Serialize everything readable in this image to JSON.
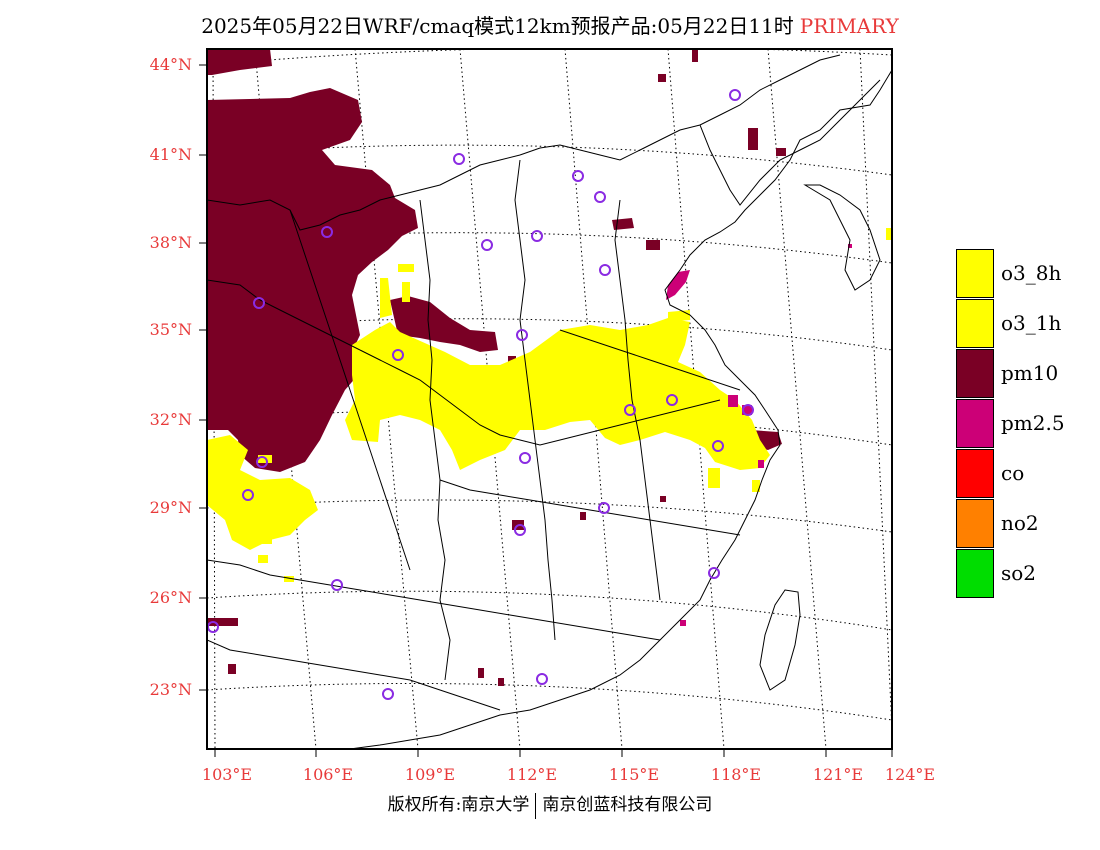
{
  "title": {
    "main": "2025年05月22日WRF/cmaq模式12km预报产品:05月22日11时",
    "tag": "PRIMARY"
  },
  "colors": {
    "accent_red": "#e83a3a",
    "pm10": "#7a0025",
    "ozone": "#ffff00",
    "station_marker": "#8a2be2"
  },
  "axes": {
    "lat_labels": [
      "44°N",
      "41°N",
      "38°N",
      "35°N",
      "32°N",
      "29°N",
      "26°N",
      "23°N"
    ],
    "lon_labels": [
      "103°E",
      "106°E",
      "109°E",
      "112°E",
      "115°E",
      "118°E",
      "121°E",
      "124°E"
    ]
  },
  "legend": [
    {
      "label": "o3_8h",
      "color": "#ffff00"
    },
    {
      "label": "o3_1h",
      "color": "#ffff00"
    },
    {
      "label": "pm10",
      "color": "#7a0025"
    },
    {
      "label": "pm2.5",
      "color": "#cc0077"
    },
    {
      "label": "co",
      "color": "#ff0000"
    },
    {
      "label": "no2",
      "color": "#ff8000"
    },
    {
      "label": "so2",
      "color": "#00dd00"
    }
  ],
  "copyright": {
    "left": "版权所有:南京大学",
    "right": "南京创蓝科技有限公司"
  }
}
